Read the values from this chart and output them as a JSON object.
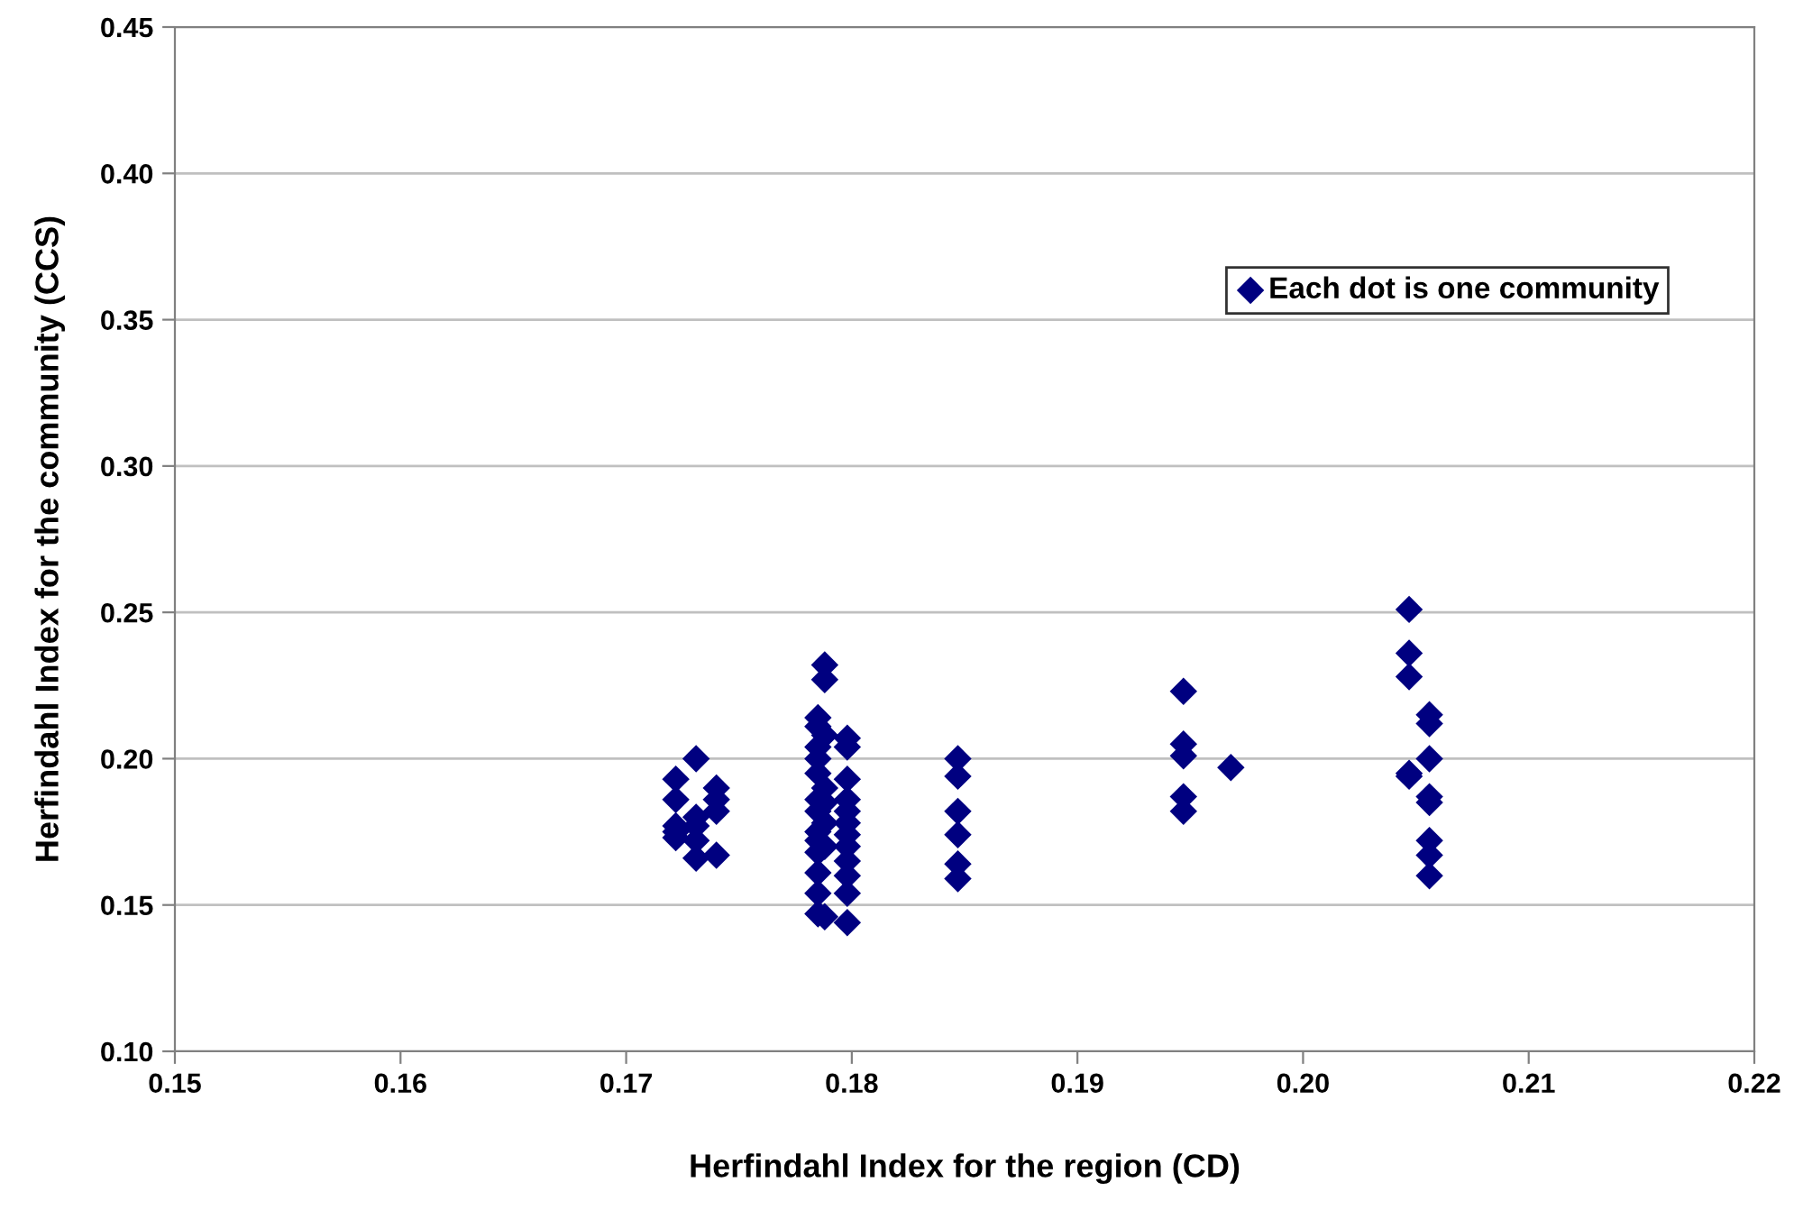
{
  "chart_data": {
    "type": "scatter",
    "xlabel": "Herfindahl Index for the region (CD)",
    "ylabel": "Herfindahl Index for the community (CCS)",
    "xlim": [
      0.15,
      0.22
    ],
    "ylim": [
      0.1,
      0.45
    ],
    "xticks": [
      {
        "value": 0.15,
        "label": "0.15"
      },
      {
        "value": 0.16,
        "label": "0.16"
      },
      {
        "value": 0.17,
        "label": "0.17"
      },
      {
        "value": 0.18,
        "label": "0.18"
      },
      {
        "value": 0.19,
        "label": "0.19"
      },
      {
        "value": 0.2,
        "label": "0.20"
      },
      {
        "value": 0.21,
        "label": "0.21"
      },
      {
        "value": 0.22,
        "label": "0.22"
      }
    ],
    "yticks": [
      {
        "value": 0.1,
        "label": "0.10"
      },
      {
        "value": 0.15,
        "label": "0.15"
      },
      {
        "value": 0.2,
        "label": "0.20"
      },
      {
        "value": 0.25,
        "label": "0.25"
      },
      {
        "value": 0.3,
        "label": "0.30"
      },
      {
        "value": 0.35,
        "label": "0.35"
      },
      {
        "value": 0.4,
        "label": "0.40"
      },
      {
        "value": 0.45,
        "label": "0.45"
      }
    ],
    "grid": "y",
    "legend": "top right",
    "marker": "diamond",
    "series": [
      {
        "name": "Each dot is one community",
        "color": "#000080",
        "x": [
          0.1722,
          0.1722,
          0.1722,
          0.1722,
          0.1722,
          0.1731,
          0.1731,
          0.1731,
          0.1731,
          0.1731,
          0.174,
          0.174,
          0.174,
          0.174,
          0.1785,
          0.1785,
          0.1785,
          0.1785,
          0.1785,
          0.1785,
          0.1785,
          0.1785,
          0.1785,
          0.1785,
          0.1785,
          0.1785,
          0.1785,
          0.1788,
          0.1788,
          0.1788,
          0.1788,
          0.1788,
          0.1788,
          0.1788,
          0.1788,
          0.1798,
          0.1798,
          0.1798,
          0.1798,
          0.1798,
          0.1798,
          0.1798,
          0.1798,
          0.1798,
          0.1798,
          0.1798,
          0.1798,
          0.1847,
          0.1847,
          0.1847,
          0.1847,
          0.1847,
          0.1847,
          0.1947,
          0.1947,
          0.1947,
          0.1947,
          0.1947,
          0.1968,
          0.2047,
          0.2047,
          0.2047,
          0.2047,
          0.2047,
          0.2056,
          0.2056,
          0.2056,
          0.2056,
          0.2056,
          0.2056,
          0.2056,
          0.2056
        ],
        "values": [
          0.193,
          0.186,
          0.177,
          0.173,
          0.175,
          0.2,
          0.18,
          0.177,
          0.172,
          0.166,
          0.19,
          0.186,
          0.182,
          0.167,
          0.214,
          0.211,
          0.204,
          0.2,
          0.195,
          0.186,
          0.182,
          0.175,
          0.172,
          0.168,
          0.161,
          0.154,
          0.147,
          0.232,
          0.227,
          0.208,
          0.19,
          0.185,
          0.178,
          0.17,
          0.146,
          0.207,
          0.204,
          0.193,
          0.186,
          0.182,
          0.178,
          0.174,
          0.17,
          0.165,
          0.16,
          0.154,
          0.144,
          0.2,
          0.194,
          0.182,
          0.174,
          0.164,
          0.159,
          0.223,
          0.205,
          0.201,
          0.187,
          0.182,
          0.197,
          0.251,
          0.236,
          0.228,
          0.195,
          0.194,
          0.215,
          0.212,
          0.2,
          0.187,
          0.185,
          0.172,
          0.167,
          0.16
        ]
      }
    ]
  }
}
